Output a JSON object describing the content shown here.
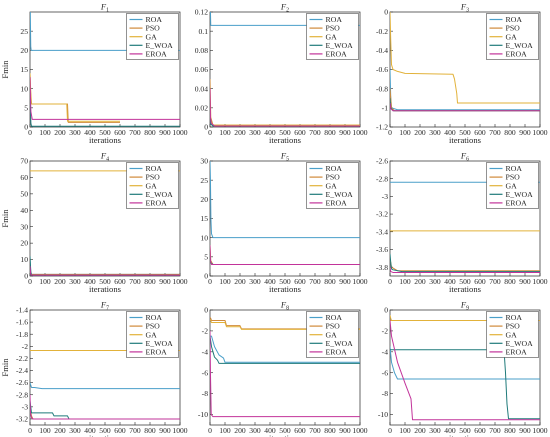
{
  "figure": {
    "ylabel": "Fmin",
    "xlabel": "iterations"
  },
  "series_meta": [
    {
      "name": "ROA",
      "color": "#4a9fc9"
    },
    {
      "name": "PSO",
      "color": "#d08a3a"
    },
    {
      "name": "GA",
      "color": "#e2b23a"
    },
    {
      "name": "E_WOA",
      "color": "#1f7a7a"
    },
    {
      "name": "EROA",
      "color": "#c2339a"
    }
  ],
  "chart_data": [
    {
      "type": "line",
      "title": "F1",
      "title_base": "F",
      "title_sub": "1",
      "xlabel": "iterations",
      "ylabel": "Fmin",
      "xlim": [
        0,
        1000
      ],
      "ylim": [
        0,
        30
      ],
      "xticks": [
        0,
        100,
        200,
        300,
        400,
        500,
        600,
        700,
        800,
        900,
        1000
      ],
      "yticks": [
        0,
        5,
        10,
        15,
        20,
        25
      ],
      "legend": "top-right",
      "grid": false,
      "series": [
        {
          "name": "ROA",
          "color": "#4a9fc9",
          "x": [
            0,
            2,
            5,
            8,
            10,
            1000
          ],
          "y": [
            30,
            30,
            21,
            20,
            20,
            20
          ]
        },
        {
          "name": "PSO",
          "color": "#d08a3a",
          "x": [
            0,
            5,
            10,
            50,
            100,
            250,
            255,
            600
          ],
          "y": [
            14,
            9,
            6,
            6,
            6,
            6,
            1.2,
            1.2
          ]
        },
        {
          "name": "GA",
          "color": "#e2b23a",
          "x": [
            0,
            3,
            8,
            20,
            245,
            250,
            600
          ],
          "y": [
            14,
            10,
            6,
            6,
            6,
            1.5,
            1.5
          ]
        },
        {
          "name": "E_WOA",
          "color": "#1f7a7a",
          "x": [
            0,
            3,
            6,
            10,
            1000
          ],
          "y": [
            10,
            4,
            1,
            0.2,
            0.2
          ]
        },
        {
          "name": "EROA",
          "color": "#c2339a",
          "x": [
            0,
            3,
            6,
            15,
            20,
            1000
          ],
          "y": [
            13,
            8,
            4,
            2,
            2,
            2
          ]
        }
      ]
    },
    {
      "type": "line",
      "title": "F2",
      "title_base": "F",
      "title_sub": "2",
      "xlabel": "iterations",
      "ylabel": "",
      "xlim": [
        0,
        1000
      ],
      "ylim": [
        0,
        0.12
      ],
      "xticks": [
        0,
        100,
        200,
        300,
        400,
        500,
        600,
        700,
        800,
        900,
        1000
      ],
      "yticks": [
        0,
        0.02,
        0.04,
        0.06,
        0.08,
        0.1,
        0.12
      ],
      "legend": "top-right",
      "grid": false,
      "series": [
        {
          "name": "ROA",
          "color": "#4a9fc9",
          "x": [
            0,
            3,
            5,
            10,
            1000
          ],
          "y": [
            0.12,
            0.12,
            0.106,
            0.106,
            0.106
          ]
        },
        {
          "name": "PSO",
          "color": "#d08a3a",
          "x": [
            0,
            5,
            20,
            1000
          ],
          "y": [
            0.05,
            0.01,
            0.002,
            0.002
          ]
        },
        {
          "name": "GA",
          "color": "#e2b23a",
          "x": [
            0,
            5,
            20,
            1000
          ],
          "y": [
            0.02,
            0.006,
            0.002,
            0.002
          ]
        },
        {
          "name": "E_WOA",
          "color": "#1f7a7a",
          "x": [
            0,
            5,
            20,
            1000
          ],
          "y": [
            0.01,
            0.003,
            0.001,
            0.001
          ]
        },
        {
          "name": "EROA",
          "color": "#c2339a",
          "x": [
            0,
            3,
            8,
            30,
            1000
          ],
          "y": [
            0.04,
            0.01,
            0.004,
            0.001,
            0.001
          ]
        }
      ]
    },
    {
      "type": "line",
      "title": "F3",
      "title_base": "F",
      "title_sub": "3",
      "xlabel": "iterations",
      "ylabel": "",
      "xlim": [
        0,
        1000
      ],
      "ylim": [
        -1.2,
        0
      ],
      "xticks": [
        0,
        100,
        200,
        300,
        400,
        500,
        600,
        700,
        800,
        900,
        1000
      ],
      "yticks": [
        -1.2,
        -1,
        -0.8,
        -0.6,
        -0.4,
        -0.2,
        0
      ],
      "legend": "top-right",
      "grid": false,
      "series": [
        {
          "name": "ROA",
          "color": "#4a9fc9",
          "x": [
            0,
            5,
            10,
            50,
            1000
          ],
          "y": [
            -0.6,
            -0.9,
            -1.0,
            -1.02,
            -1.02
          ]
        },
        {
          "name": "PSO",
          "color": "#d08a3a",
          "x": [
            0,
            10,
            30,
            1000
          ],
          "y": [
            -0.8,
            -1.0,
            -1.03,
            -1.03
          ]
        },
        {
          "name": "GA",
          "color": "#e2b23a",
          "x": [
            0,
            5,
            10,
            20,
            50,
            100,
            420,
            430,
            445,
            450,
            1000
          ],
          "y": [
            0,
            -0.3,
            -0.55,
            -0.6,
            -0.62,
            -0.64,
            -0.65,
            -0.7,
            -0.85,
            -0.95,
            -0.95
          ]
        },
        {
          "name": "E_WOA",
          "color": "#1f7a7a",
          "x": [
            0,
            5,
            20,
            1000
          ],
          "y": [
            -0.9,
            -1.0,
            -1.03,
            -1.03
          ]
        },
        {
          "name": "EROA",
          "color": "#c2339a",
          "x": [
            0,
            5,
            20,
            1000
          ],
          "y": [
            -0.95,
            -1.01,
            -1.03,
            -1.03
          ]
        }
      ]
    },
    {
      "type": "line",
      "title": "F4",
      "title_base": "F",
      "title_sub": "4",
      "xlabel": "iterations",
      "ylabel": "Fmin",
      "xlim": [
        0,
        1000
      ],
      "ylim": [
        0,
        70
      ],
      "xticks": [
        0,
        100,
        200,
        300,
        400,
        500,
        600,
        700,
        800,
        900,
        1000
      ],
      "yticks": [
        0,
        10,
        20,
        30,
        40,
        50,
        60,
        70
      ],
      "legend": "top-right",
      "grid": false,
      "series": [
        {
          "name": "ROA",
          "color": "#4a9fc9",
          "x": [
            0,
            5,
            10,
            1000
          ],
          "y": [
            10,
            2,
            1,
            1
          ]
        },
        {
          "name": "PSO",
          "color": "#d08a3a",
          "x": [
            0,
            5,
            10,
            1000
          ],
          "y": [
            8,
            2,
            1,
            1
          ]
        },
        {
          "name": "GA",
          "color": "#e2b23a",
          "x": [
            0,
            1000
          ],
          "y": [
            64,
            64
          ]
        },
        {
          "name": "E_WOA",
          "color": "#1f7a7a",
          "x": [
            0,
            5,
            10,
            1000
          ],
          "y": [
            12,
            3,
            0.5,
            0.5
          ]
        },
        {
          "name": "EROA",
          "color": "#c2339a",
          "x": [
            0,
            5,
            10,
            1000
          ],
          "y": [
            6,
            1,
            0.5,
            0.5
          ]
        }
      ]
    },
    {
      "type": "line",
      "title": "F5",
      "title_base": "F",
      "title_sub": "5",
      "xlabel": "iterations",
      "ylabel": "",
      "xlim": [
        0,
        1000
      ],
      "ylim": [
        0,
        30
      ],
      "xticks": [
        0,
        100,
        200,
        300,
        400,
        500,
        600,
        700,
        800,
        900,
        1000
      ],
      "yticks": [
        0,
        5,
        10,
        15,
        20,
        25,
        30
      ],
      "legend": "top-right",
      "grid": false,
      "series": [
        {
          "name": "ROA",
          "color": "#4a9fc9",
          "x": [
            0,
            3,
            6,
            10,
            20,
            1000
          ],
          "y": [
            30,
            25,
            15,
            11,
            10,
            10
          ]
        },
        {
          "name": "PSO",
          "color": "#d08a3a",
          "x": [
            0,
            5,
            20,
            1000
          ],
          "y": [
            8,
            4,
            3,
            3
          ]
        },
        {
          "name": "GA",
          "color": "#e2b23a",
          "x": [
            0,
            5,
            20,
            1000
          ],
          "y": [
            6,
            3.5,
            3,
            3
          ]
        },
        {
          "name": "E_WOA",
          "color": "#1f7a7a",
          "x": [
            0,
            5,
            20,
            1000
          ],
          "y": [
            5,
            3.5,
            3,
            3
          ]
        },
        {
          "name": "EROA",
          "color": "#c2339a",
          "x": [
            0,
            3,
            10,
            1000
          ],
          "y": [
            8,
            4,
            3,
            3
          ]
        }
      ]
    },
    {
      "type": "line",
      "title": "F6",
      "title_base": "F",
      "title_sub": "6",
      "xlabel": "iterations",
      "ylabel": "",
      "xlim": [
        0,
        1000
      ],
      "ylim": [
        -3.9,
        -2.6
      ],
      "xticks": [
        0,
        100,
        200,
        300,
        400,
        500,
        600,
        700,
        800,
        900,
        1000
      ],
      "yticks": [
        -3.8,
        -3.6,
        -3.4,
        -3.2,
        -3,
        -2.8,
        -2.6
      ],
      "legend": "top-right",
      "grid": false,
      "series": [
        {
          "name": "ROA",
          "color": "#4a9fc9",
          "x": [
            0,
            10,
            1000
          ],
          "y": [
            -2.84,
            -2.84,
            -2.84
          ]
        },
        {
          "name": "PSO",
          "color": "#d08a3a",
          "x": [
            0,
            10,
            50,
            1000
          ],
          "y": [
            -3.7,
            -3.8,
            -3.84,
            -3.84
          ]
        },
        {
          "name": "GA",
          "color": "#e2b23a",
          "x": [
            0,
            1000
          ],
          "y": [
            -3.39,
            -3.39
          ]
        },
        {
          "name": "E_WOA",
          "color": "#1f7a7a",
          "x": [
            0,
            5,
            10,
            20,
            80,
            1000
          ],
          "y": [
            -3.65,
            -3.75,
            -3.82,
            -3.83,
            -3.85,
            -3.85
          ]
        },
        {
          "name": "EROA",
          "color": "#c2339a",
          "x": [
            0,
            5,
            20,
            1000
          ],
          "y": [
            -3.8,
            -3.85,
            -3.86,
            -3.86
          ]
        }
      ]
    },
    {
      "type": "line",
      "title": "F7",
      "title_base": "F",
      "title_sub": "7",
      "xlabel": "iterations",
      "ylabel": "Fmin",
      "xlim": [
        0,
        1000
      ],
      "ylim": [
        -3.3,
        -1.4
      ],
      "xticks": [
        0,
        100,
        200,
        300,
        400,
        500,
        600,
        700,
        800,
        900,
        1000
      ],
      "yticks": [
        -3.2,
        -3,
        -2.8,
        -2.6,
        -2.4,
        -2.2,
        -2,
        -1.8,
        -1.6,
        -1.4
      ],
      "legend": "top-right",
      "grid": false,
      "series": [
        {
          "name": "ROA",
          "color": "#4a9fc9",
          "x": [
            0,
            10,
            30,
            80,
            1000
          ],
          "y": [
            -2.6,
            -2.68,
            -2.68,
            -2.7,
            -2.7
          ]
        },
        {
          "name": "PSO",
          "color": "#d08a3a",
          "x": [
            0,
            10,
            20,
            1000
          ],
          "y": [
            -3.0,
            -3.15,
            -3.2,
            -3.2
          ]
        },
        {
          "name": "GA",
          "color": "#e2b23a",
          "x": [
            0,
            1000
          ],
          "y": [
            -2.07,
            -2.07
          ]
        },
        {
          "name": "E_WOA",
          "color": "#1f7a7a",
          "x": [
            0,
            10,
            20,
            150,
            160,
            250,
            260,
            1000
          ],
          "y": [
            -2.9,
            -3.1,
            -3.1,
            -3.1,
            -3.15,
            -3.15,
            -3.2,
            -3.2
          ]
        },
        {
          "name": "EROA",
          "color": "#c2339a",
          "x": [
            0,
            3,
            10,
            20,
            1000
          ],
          "y": [
            -2.8,
            -3.1,
            -3.18,
            -3.2,
            -3.2
          ]
        }
      ]
    },
    {
      "type": "line",
      "title": "F8",
      "title_base": "F",
      "title_sub": "8",
      "xlabel": "iterations",
      "ylabel": "",
      "xlim": [
        0,
        1000
      ],
      "ylim": [
        -11,
        0
      ],
      "xticks": [
        0,
        100,
        200,
        300,
        400,
        500,
        600,
        700,
        800,
        900,
        1000
      ],
      "yticks": [
        -10,
        -8,
        -6,
        -4,
        -2,
        0
      ],
      "legend": "top-right",
      "grid": false,
      "series": [
        {
          "name": "ROA",
          "color": "#4a9fc9",
          "x": [
            0,
            10,
            30,
            60,
            90,
            100,
            1000
          ],
          "y": [
            -2.5,
            -2.5,
            -3.5,
            -4.3,
            -4.6,
            -5.0,
            -5.0
          ]
        },
        {
          "name": "PSO",
          "color": "#d08a3a",
          "x": [
            0,
            5,
            10,
            100,
            110,
            200,
            210,
            1000
          ],
          "y": [
            -0.7,
            -0.8,
            -1.0,
            -1.0,
            -1.5,
            -1.5,
            -1.8,
            -1.8
          ]
        },
        {
          "name": "GA",
          "color": "#e2b23a",
          "x": [
            0,
            5,
            10,
            100,
            110,
            200,
            210,
            1000
          ],
          "y": [
            -0.9,
            -1.0,
            -1.2,
            -1.2,
            -1.6,
            -1.6,
            -1.85,
            -1.85
          ]
        },
        {
          "name": "E_WOA",
          "color": "#1f7a7a",
          "x": [
            0,
            10,
            30,
            50,
            60,
            1000
          ],
          "y": [
            -2.5,
            -3.5,
            -4.5,
            -4.8,
            -5.1,
            -5.1
          ]
        },
        {
          "name": "EROA",
          "color": "#c2339a",
          "x": [
            0,
            3,
            8,
            20,
            1000
          ],
          "y": [
            -2.0,
            -6.0,
            -10.0,
            -10.2,
            -10.2
          ]
        }
      ]
    },
    {
      "type": "line",
      "title": "F9",
      "title_base": "F",
      "title_sub": "9",
      "xlabel": "iterations",
      "ylabel": "",
      "xlim": [
        0,
        1000
      ],
      "ylim": [
        -11,
        0
      ],
      "xticks": [
        0,
        100,
        200,
        300,
        400,
        500,
        600,
        700,
        800,
        900,
        1000
      ],
      "yticks": [
        -10,
        -8,
        -6,
        -4,
        -2,
        0
      ],
      "legend": "top-right",
      "grid": false,
      "series": [
        {
          "name": "ROA",
          "color": "#4a9fc9",
          "x": [
            0,
            10,
            30,
            50,
            1000
          ],
          "y": [
            -3.5,
            -5.0,
            -6.0,
            -6.6,
            -6.6
          ]
        },
        {
          "name": "PSO",
          "color": "#d08a3a",
          "x": [
            0,
            10,
            1000
          ],
          "y": [
            -1.0,
            -1.0,
            -1.0
          ]
        },
        {
          "name": "GA",
          "color": "#e2b23a",
          "x": [
            0,
            5,
            10,
            1000
          ],
          "y": [
            -0.5,
            -0.8,
            -1.0,
            -1.0
          ]
        },
        {
          "name": "E_WOA",
          "color": "#1f7a7a",
          "x": [
            0,
            100,
            200,
            760,
            770,
            780,
            790,
            1000
          ],
          "y": [
            -3.8,
            -3.8,
            -3.8,
            -3.8,
            -6.0,
            -9.0,
            -10.4,
            -10.4
          ]
        },
        {
          "name": "EROA",
          "color": "#c2339a",
          "x": [
            0,
            10,
            50,
            100,
            140,
            150,
            200,
            1000
          ],
          "y": [
            -1.0,
            -2.5,
            -5.0,
            -7.0,
            -8.5,
            -10.5,
            -10.5,
            -10.5
          ]
        }
      ]
    }
  ]
}
